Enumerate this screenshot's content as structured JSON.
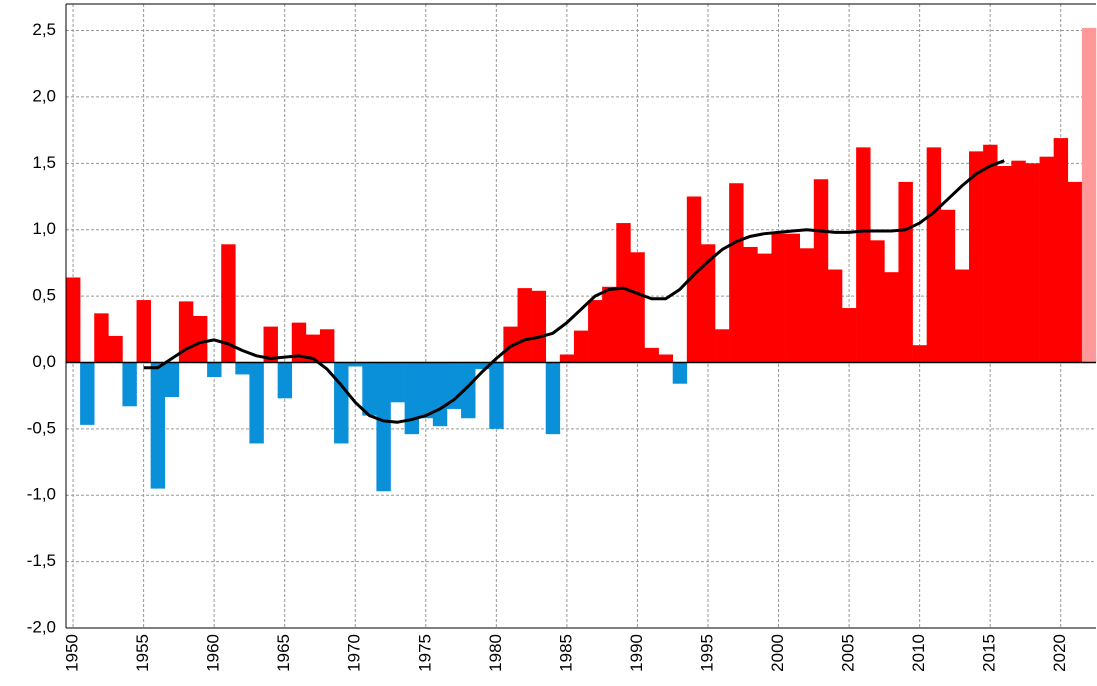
{
  "chart_data": {
    "type": "bar",
    "x": [
      1950,
      1951,
      1952,
      1953,
      1954,
      1955,
      1956,
      1957,
      1958,
      1959,
      1960,
      1961,
      1962,
      1963,
      1964,
      1965,
      1966,
      1967,
      1968,
      1969,
      1970,
      1971,
      1972,
      1973,
      1974,
      1975,
      1976,
      1977,
      1978,
      1979,
      1980,
      1981,
      1982,
      1983,
      1984,
      1985,
      1986,
      1987,
      1988,
      1989,
      1990,
      1991,
      1992,
      1993,
      1994,
      1995,
      1996,
      1997,
      1998,
      1999,
      2000,
      2001,
      2002,
      2003,
      2004,
      2005,
      2006,
      2007,
      2008,
      2009,
      2010,
      2011,
      2012,
      2013,
      2014,
      2015,
      2016,
      2017,
      2018,
      2019,
      2020,
      2021,
      2022
    ],
    "values": [
      0.64,
      -0.47,
      0.37,
      0.2,
      -0.33,
      0.47,
      -0.95,
      -0.26,
      0.46,
      0.35,
      -0.11,
      0.89,
      -0.09,
      -0.61,
      0.27,
      -0.27,
      0.3,
      0.21,
      0.25,
      -0.61,
      -0.03,
      -0.4,
      -0.97,
      -0.3,
      -0.54,
      -0.42,
      -0.48,
      -0.35,
      -0.42,
      -0.05,
      -0.5,
      0.27,
      0.56,
      0.54,
      -0.54,
      0.06,
      0.24,
      0.47,
      0.57,
      1.05,
      0.83,
      0.11,
      0.06,
      -0.16,
      1.25,
      0.89,
      0.25,
      1.35,
      0.87,
      0.82,
      0.97,
      0.97,
      0.86,
      1.38,
      0.7,
      0.41,
      1.62,
      0.92,
      0.68,
      1.36,
      0.13,
      1.62,
      1.15,
      0.7,
      1.59,
      1.64,
      1.48,
      1.52,
      1.5,
      1.55,
      1.69,
      1.36,
      2.52
    ],
    "colors": [
      "#ff0000",
      "#0a8fd9",
      "#ff0000",
      "#ff0000",
      "#0a8fd9",
      "#ff0000",
      "#0a8fd9",
      "#0a8fd9",
      "#ff0000",
      "#ff0000",
      "#0a8fd9",
      "#ff0000",
      "#0a8fd9",
      "#0a8fd9",
      "#ff0000",
      "#0a8fd9",
      "#ff0000",
      "#ff0000",
      "#ff0000",
      "#0a8fd9",
      "#0a8fd9",
      "#0a8fd9",
      "#0a8fd9",
      "#0a8fd9",
      "#0a8fd9",
      "#0a8fd9",
      "#0a8fd9",
      "#0a8fd9",
      "#0a8fd9",
      "#0a8fd9",
      "#0a8fd9",
      "#ff0000",
      "#ff0000",
      "#ff0000",
      "#0a8fd9",
      "#ff0000",
      "#ff0000",
      "#ff0000",
      "#ff0000",
      "#ff0000",
      "#ff0000",
      "#ff0000",
      "#ff0000",
      "#0a8fd9",
      "#ff0000",
      "#ff0000",
      "#ff0000",
      "#ff0000",
      "#ff0000",
      "#ff0000",
      "#ff0000",
      "#ff0000",
      "#ff0000",
      "#ff0000",
      "#ff0000",
      "#ff0000",
      "#ff0000",
      "#ff0000",
      "#ff0000",
      "#ff0000",
      "#ff0000",
      "#ff0000",
      "#ff0000",
      "#ff0000",
      "#ff0000",
      "#ff0000",
      "#ff0000",
      "#ff0000",
      "#ff0000",
      "#ff0000",
      "#ff0000",
      "#ff0000",
      "#ff9999"
    ],
    "trend": {
      "type": "line",
      "color": "#000000",
      "values": [
        null,
        null,
        null,
        null,
        null,
        -0.04,
        -0.04,
        0.03,
        0.1,
        0.15,
        0.17,
        0.14,
        0.09,
        0.05,
        0.03,
        0.04,
        0.05,
        0.03,
        -0.05,
        -0.17,
        -0.3,
        -0.4,
        -0.44,
        -0.45,
        -0.43,
        -0.4,
        -0.35,
        -0.28,
        -0.18,
        -0.07,
        0.03,
        0.12,
        0.17,
        0.19,
        0.22,
        0.3,
        0.4,
        0.5,
        0.55,
        0.56,
        0.52,
        0.48,
        0.48,
        0.55,
        0.66,
        0.76,
        0.85,
        0.91,
        0.95,
        0.97,
        0.98,
        0.99,
        1.0,
        0.99,
        0.98,
        0.98,
        0.99,
        0.99,
        0.99,
        1.0,
        1.05,
        1.13,
        1.23,
        1.33,
        1.42,
        1.48,
        1.52,
        null,
        null,
        null,
        null,
        null,
        null
      ]
    },
    "xlim": [
      1949.5,
      2022.5
    ],
    "xticks": [
      1950,
      1955,
      1960,
      1965,
      1970,
      1975,
      1980,
      1985,
      1990,
      1995,
      2000,
      2005,
      2010,
      2015,
      2020
    ],
    "ylim": [
      -2.0,
      2.7
    ],
    "yticks": [
      {
        "value": -2.0,
        "label": "-2,0"
      },
      {
        "value": -1.5,
        "label": "-1,5"
      },
      {
        "value": -1.0,
        "label": "-1,0"
      },
      {
        "value": -0.5,
        "label": "-0,5"
      },
      {
        "value": 0.0,
        "label": "0,0"
      },
      {
        "value": 0.5,
        "label": "0,5"
      },
      {
        "value": 1.0,
        "label": "1,0"
      },
      {
        "value": 1.5,
        "label": "1,5"
      },
      {
        "value": 2.0,
        "label": "2,0"
      },
      {
        "value": 2.5,
        "label": "2,5"
      }
    ],
    "grid": true
  }
}
